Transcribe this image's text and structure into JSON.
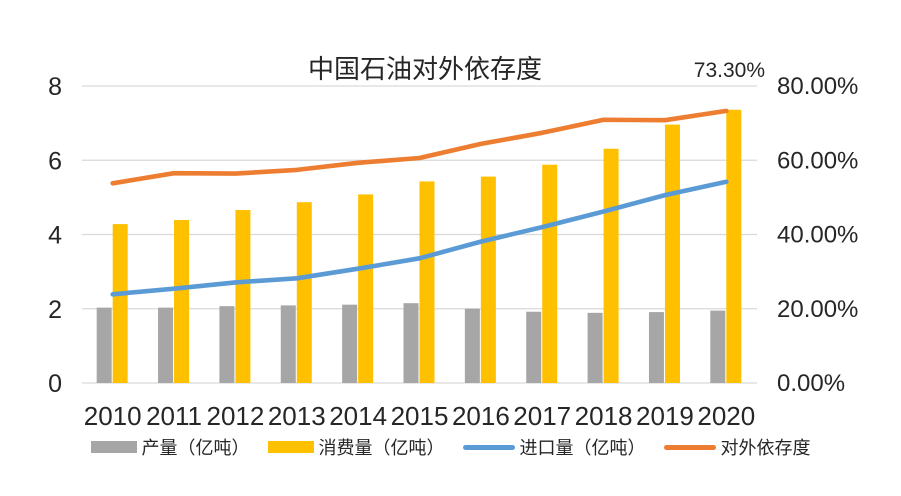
{
  "colors": {
    "gridline": "#d9d9d9",
    "axis_text": "#262626",
    "title_text": "#1a1a1a"
  },
  "chart_data": {
    "type": "bar",
    "subtype": "combo-bar-line-dual-axis",
    "title": "中国石油对外依存度",
    "categories": [
      "2010",
      "2011",
      "2012",
      "2013",
      "2014",
      "2015",
      "2016",
      "2017",
      "2018",
      "2019",
      "2020"
    ],
    "series": [
      {
        "name": "产量（亿吨）",
        "type": "bar",
        "axis": "left",
        "color": "#a6a6a6",
        "values": [
          2.03,
          2.03,
          2.07,
          2.09,
          2.11,
          2.15,
          2.0,
          1.92,
          1.89,
          1.91,
          1.95
        ]
      },
      {
        "name": "消费量（亿吨）",
        "type": "bar",
        "axis": "left",
        "color": "#ffc000",
        "values": [
          4.28,
          4.39,
          4.66,
          4.87,
          5.08,
          5.43,
          5.56,
          5.88,
          6.31,
          6.96,
          7.36
        ]
      },
      {
        "name": "进口量（亿吨）",
        "type": "line",
        "axis": "left",
        "color": "#5b9bd5",
        "values": [
          2.39,
          2.54,
          2.71,
          2.82,
          3.08,
          3.36,
          3.81,
          4.2,
          4.62,
          5.06,
          5.42
        ]
      },
      {
        "name": "对外依存度",
        "type": "line",
        "axis": "right",
        "color": "#ed7d31",
        "values": [
          53.8,
          56.5,
          56.4,
          57.4,
          59.3,
          60.6,
          64.4,
          67.4,
          70.9,
          70.8,
          73.3
        ]
      }
    ],
    "left_axis": {
      "min": 0,
      "max": 8,
      "ticks": [
        {
          "label": "0",
          "value": 0
        },
        {
          "label": "2",
          "value": 2
        },
        {
          "label": "4",
          "value": 4
        },
        {
          "label": "6",
          "value": 6
        },
        {
          "label": "8",
          "value": 8
        }
      ]
    },
    "right_axis": {
      "min": 0,
      "max": 80,
      "ticks": [
        {
          "label": "0.00%",
          "value": 0
        },
        {
          "label": "20.00%",
          "value": 20
        },
        {
          "label": "40.00%",
          "value": 40
        },
        {
          "label": "60.00%",
          "value": 60
        },
        {
          "label": "80.00%",
          "value": 80
        }
      ]
    },
    "annotation": {
      "text": "73.30%",
      "series": "对外依存度",
      "category": "2020"
    },
    "grid": true,
    "legend_position": "bottom"
  }
}
